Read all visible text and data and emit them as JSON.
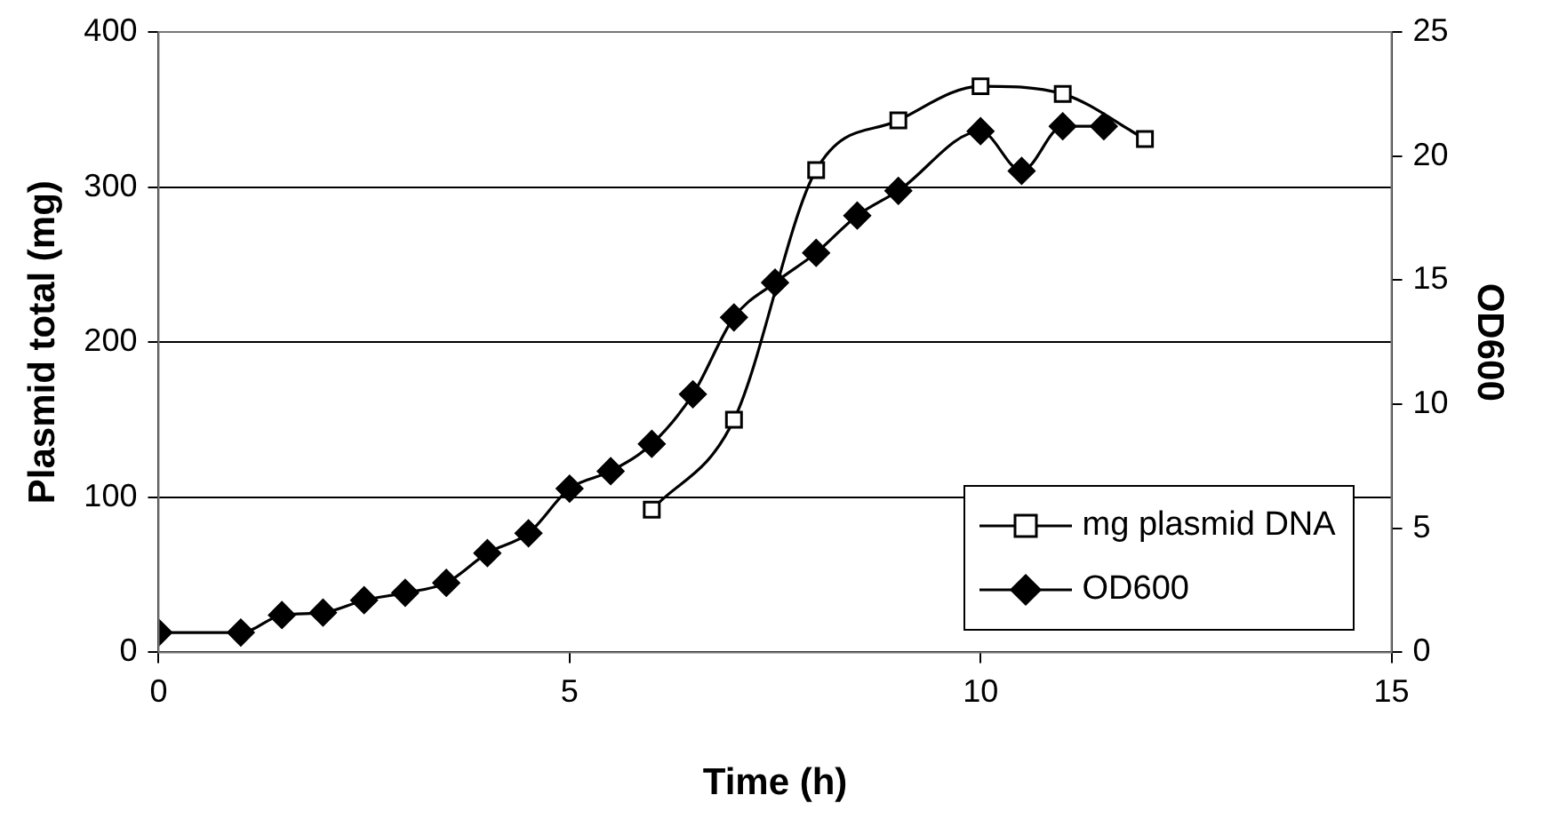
{
  "chart_data": {
    "type": "line",
    "xlabel": "Time (h)",
    "ylabel": "Plasmid total (mg)",
    "y2label": "OD600",
    "xlim": [
      0,
      15
    ],
    "xticks": [
      0,
      5,
      10,
      15
    ],
    "ylim": [
      0,
      400
    ],
    "yticks": [
      0,
      100,
      200,
      300,
      400
    ],
    "y2lim": [
      0,
      25
    ],
    "y2ticks": [
      0,
      5,
      10,
      15,
      20,
      25
    ],
    "grid": "y",
    "legend": "bottom right",
    "line_style": "solid",
    "series": [
      {
        "name": "mg plasmid DNA",
        "color": "#000000",
        "marker": "square",
        "x": [
          6,
          7,
          8,
          9,
          10,
          11,
          12
        ],
        "values": [
          92,
          150,
          311,
          343,
          365,
          360,
          331
        ]
      },
      {
        "name": "OD600",
        "color": "#000000",
        "marker": "diamond",
        "axis": "y2",
        "x": [
          0,
          1,
          1.5,
          2,
          2.5,
          3,
          3.5,
          4,
          4.5,
          5,
          5.5,
          6,
          6.5,
          7,
          7.5,
          8,
          8.5,
          9,
          10,
          10.5,
          11,
          11.5
        ],
        "values": [
          0.8,
          0.8,
          1.5,
          1.6,
          2.1,
          2.4,
          2.8,
          4.0,
          4.8,
          6.6,
          7.3,
          8.4,
          10.4,
          13.5,
          14.9,
          16.1,
          17.6,
          18.6,
          21.0,
          19.4,
          21.2,
          21.2
        ]
      }
    ]
  }
}
